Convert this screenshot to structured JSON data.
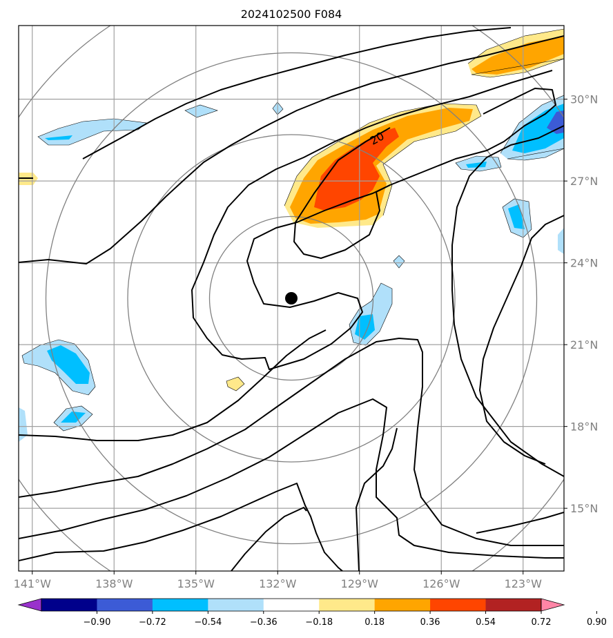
{
  "chart_data": {
    "type": "contour",
    "title": "2024102500 F084",
    "projection": "lat-lon map",
    "x_axis": {
      "ticks": [
        -141,
        -138,
        -135,
        -132,
        -129,
        -126,
        -123
      ],
      "labels": [
        "141°W",
        "138°W",
        "135°W",
        "132°W",
        "129°W",
        "126°W",
        "123°W"
      ],
      "range": [
        -141.5,
        -121.5
      ]
    },
    "y_axis": {
      "ticks": [
        15,
        18,
        21,
        24,
        27,
        30
      ],
      "labels": [
        "15°N",
        "18°N",
        "21°N",
        "24°N",
        "27°N",
        "30°N"
      ],
      "range": [
        12.7,
        32.7
      ],
      "position": "right"
    },
    "grid": true,
    "center_marker": {
      "lon": -131.5,
      "lat": 22.7
    },
    "range_rings_deg": [
      3,
      6,
      9,
      12
    ],
    "contour_label": "20",
    "colorbar": {
      "levels": [
        -0.9,
        -0.72,
        -0.54,
        -0.36,
        -0.18,
        0.18,
        0.36,
        0.54,
        0.72,
        0.9
      ],
      "tick_labels": [
        "−0.90",
        "−0.72",
        "−0.54",
        "−0.36",
        "−0.18",
        "0.18",
        "0.36",
        "0.54",
        "0.72",
        "0.90"
      ],
      "colors": [
        "#9932cc",
        "#00008b",
        "#3c5bd6",
        "#00bfff",
        "#b0e0fa",
        "#ffffff",
        "#ffe98a",
        "#ffa500",
        "#ff4500",
        "#b22222",
        "#ff85a6"
      ],
      "extend": "both",
      "location": "bottom"
    },
    "fill_colors": {
      "light_blue": "#b0e0fa",
      "blue": "#00bfff",
      "dark_blue": "#3c5bd6",
      "yellow": "#ffe98a",
      "orange": "#ffa500",
      "red_orange": "#ff4500"
    }
  }
}
